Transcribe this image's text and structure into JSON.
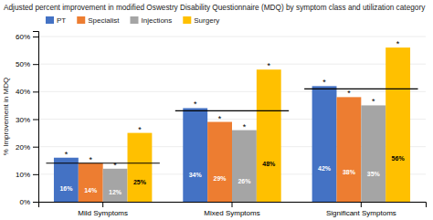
{
  "chart_data": {
    "type": "bar",
    "title": "Adjusted percent improvement in modified Oswestry Disability Questionnaire (MDQ)  by symptom class and utilization category",
    "ylabel": "% Improvement in MDQ",
    "categories": [
      "Mild Symptoms",
      "Mixed Symptoms",
      "Significant Symptoms"
    ],
    "series": [
      {
        "name": "PT",
        "color": "#4472C4",
        "values": [
          16,
          34,
          42
        ],
        "value_labels": [
          "16%",
          "34%",
          "42%"
        ],
        "annotations": [
          "*",
          "*",
          "*"
        ]
      },
      {
        "name": "Specialist",
        "color": "#ED7D31",
        "values": [
          14,
          29,
          38
        ],
        "value_labels": [
          "14%",
          "29%",
          "38%"
        ],
        "annotations": [
          "*",
          "*",
          "*"
        ]
      },
      {
        "name": "Injections",
        "color": "#A5A5A5",
        "values": [
          12,
          26,
          35
        ],
        "value_labels": [
          "12%",
          "26%",
          "35%"
        ],
        "annotations": [
          "*",
          "*",
          "*"
        ]
      },
      {
        "name": "Surgery",
        "color": "#FFC000",
        "values": [
          25,
          48,
          56
        ],
        "value_labels": [
          "25%",
          "48%",
          "56%"
        ],
        "annotations": [
          "*",
          "*",
          "*"
        ]
      }
    ],
    "reference_lines": [
      14,
      33,
      41
    ],
    "ylim": [
      0,
      62
    ],
    "yticks": [
      {
        "value": 0,
        "label": "0%"
      },
      {
        "value": 10,
        "label": "10%"
      },
      {
        "value": 20,
        "label": "20%"
      },
      {
        "value": 30,
        "label": "30%"
      },
      {
        "value": 40,
        "label": "40%"
      },
      {
        "value": 50,
        "label": "50%"
      },
      {
        "value": 60,
        "label": "60%"
      }
    ],
    "grid": true,
    "legend": "top-left",
    "data_labels": true
  }
}
